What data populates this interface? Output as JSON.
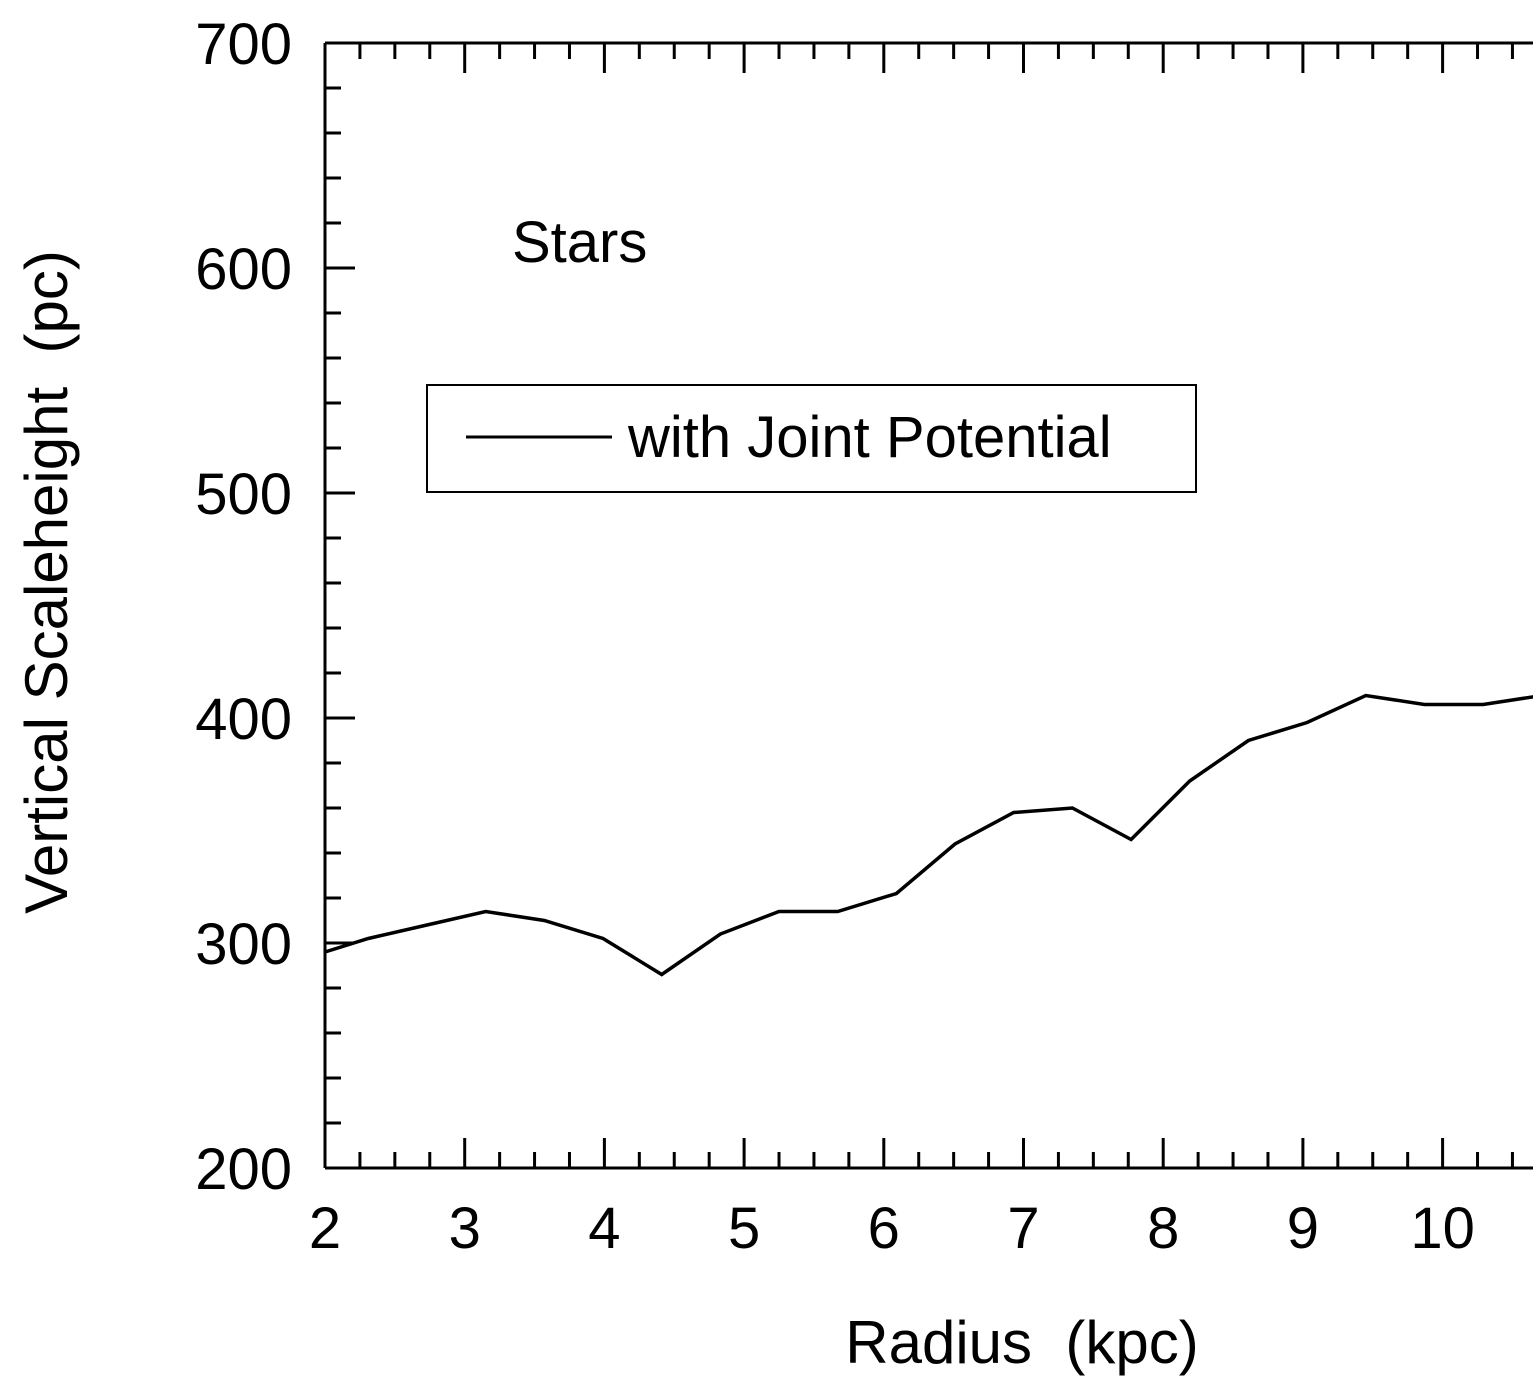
{
  "chart_data": {
    "type": "line",
    "title": "",
    "annotation": "Stars",
    "xlabel": "Radius  (kpc)",
    "ylabel": "Vertical Scaleheight  (pc)",
    "xlim": [
      2,
      11
    ],
    "ylim": [
      200,
      700
    ],
    "x_ticks": [
      2,
      3,
      4,
      5,
      6,
      7,
      8,
      9,
      10
    ],
    "y_ticks": [
      200,
      300,
      400,
      500,
      600,
      700
    ],
    "x_ticks_labels": [
      "2",
      "3",
      "4",
      "5",
      "6",
      "7",
      "8",
      "9",
      "10"
    ],
    "y_ticks_labels": [
      "200",
      "300",
      "400",
      "500",
      "600",
      "700"
    ],
    "x_minor_step": 0.25,
    "y_minor_step": 20,
    "grid": false,
    "legend": {
      "position": "upper-left",
      "entries": [
        "with Joint Potential"
      ]
    },
    "series": [
      {
        "name": "with Joint Potential",
        "color": "#000000",
        "x": [
          2.0,
          2.31,
          2.73,
          3.15,
          3.57,
          3.99,
          4.41,
          4.83,
          5.25,
          5.67,
          6.09,
          6.51,
          6.93,
          7.35,
          7.77,
          8.19,
          8.61,
          9.03,
          9.45,
          9.87,
          10.29,
          10.71
        ],
        "y": [
          296,
          302,
          308,
          314,
          310,
          302,
          286,
          304,
          314,
          314,
          322,
          344,
          358,
          360,
          346,
          372,
          390,
          398,
          410,
          406,
          406,
          410
        ]
      }
    ]
  }
}
